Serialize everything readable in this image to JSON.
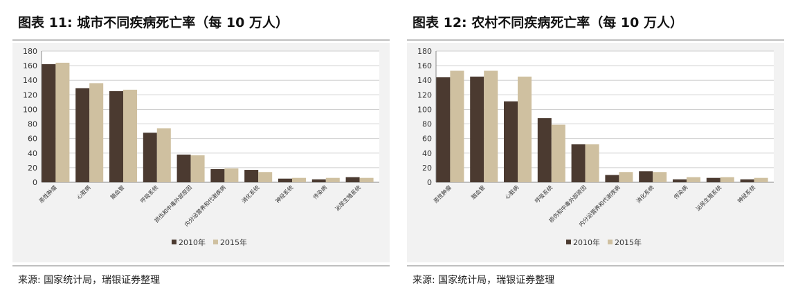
{
  "colors": {
    "s2010": "#4b3a30",
    "s2015": "#cfc0a0",
    "grid": "#cfcfcf",
    "axis": "#888888"
  },
  "panels": [
    {
      "title": "图表 11: 城市不同疾病死亡率（每 10 万人）",
      "source": "来源: 国家统计局，瑞银证券整理",
      "chart_data": {
        "type": "bar",
        "categories": [
          "恶性肿瘤",
          "心脏病",
          "脑血管",
          "呼吸系统",
          "损伤和中毒外部原因",
          "内分泌营养和代谢疾病",
          "消化系统",
          "神经系统",
          "传染病",
          "泌尿生殖系统"
        ],
        "series": [
          {
            "name": "2010年",
            "values": [
              162,
              129,
              125,
              68,
              38,
              18,
              17,
              5,
              4,
              7
            ]
          },
          {
            "name": "2015年",
            "values": [
              164,
              136,
              127,
              74,
              37,
              19,
              14,
              6,
              6,
              6
            ]
          }
        ],
        "ylim": [
          0,
          180
        ],
        "yticks": [
          0,
          20,
          40,
          60,
          80,
          100,
          120,
          140,
          160,
          180
        ],
        "grid": true,
        "legend": "bottom-center"
      }
    },
    {
      "title": "图表 12: 农村不同疾病死亡率（每 10 万人）",
      "source": "来源: 国家统计局，瑞银证券整理",
      "chart_data": {
        "type": "bar",
        "categories": [
          "恶性肿瘤",
          "脑血管",
          "心脏病",
          "呼吸系统",
          "损伤和中毒外部原因",
          "内分泌营养和代谢疾病",
          "消化系统",
          "传染病",
          "泌尿生殖系统",
          "神经系统"
        ],
        "series": [
          {
            "name": "2010年",
            "values": [
              144,
              145,
              111,
              88,
              52,
              10,
              15,
              4,
              6,
              4
            ]
          },
          {
            "name": "2015年",
            "values": [
              153,
              153,
              145,
              79,
              52,
              14,
              14,
              7,
              7,
              6
            ]
          }
        ],
        "ylim": [
          0,
          180
        ],
        "yticks": [
          0,
          20,
          40,
          60,
          80,
          100,
          120,
          140,
          160,
          180
        ],
        "grid": true,
        "legend": "bottom-center"
      }
    }
  ]
}
